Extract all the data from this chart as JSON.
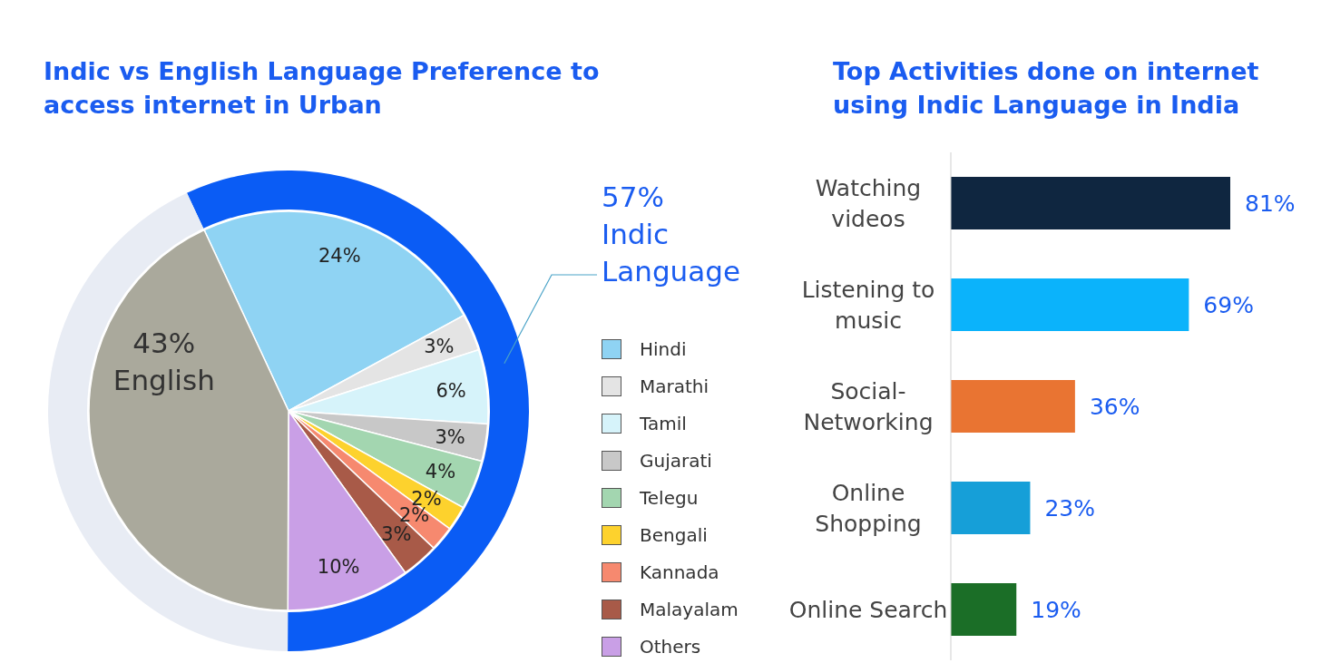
{
  "chart_data": [
    {
      "type": "pie",
      "title": "Indic vs English Language Preference to access internet in Urban",
      "categories": [
        "Hindi",
        "Marathi",
        "Tamil",
        "Gujarati",
        "Telegu",
        "Bengali",
        "Kannada",
        "Malayalam",
        "Others",
        null
      ],
      "values": [
        24,
        3,
        6,
        3,
        4,
        2,
        2,
        3,
        10,
        43
      ],
      "colors": [
        "#8fd3f3",
        "#e4e4e4",
        "#d6f3fa",
        "#c8c8c8",
        "#a3d6b0",
        "#fdd22d",
        "#f6896f",
        "#a85a48",
        "#c99fe6",
        "#aaa99c"
      ],
      "value_labels": [
        "24%",
        "3%",
        "6%",
        "3%",
        "4%",
        "2%",
        "2%",
        "3%",
        "10%",
        null
      ],
      "legend": "right"
    },
    {
      "type": "donut",
      "categories": [
        "Indic Language",
        "English"
      ],
      "values": [
        57,
        43
      ],
      "colors": [
        "#0a5cf5",
        "#e8ecf4"
      ],
      "value_labels": [
        "57%",
        "43%"
      ]
    },
    {
      "type": "bar",
      "orientation": "horizontal",
      "title": "Top Activities done on internet using Indic Language in India",
      "categories": [
        "Watching videos",
        "Listening to music",
        "Social-Networking",
        "Online Shopping",
        "Online Search"
      ],
      "values": [
        81,
        69,
        36,
        23,
        19
      ],
      "colors": [
        "#0f2640",
        "#0bb3fb",
        "#e97432",
        "#169fd8",
        "#1b6e27"
      ],
      "value_labels": [
        "81%",
        "69%",
        "36%",
        "23%",
        "19%"
      ]
    }
  ]
}
